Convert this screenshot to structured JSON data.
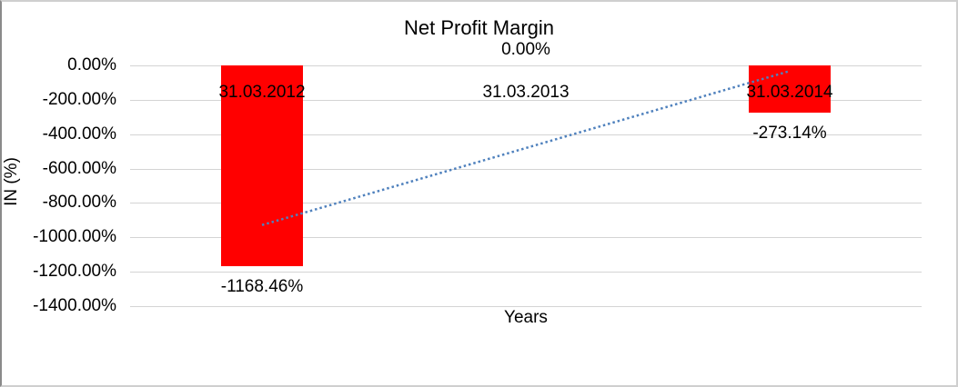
{
  "chart_data": {
    "type": "bar",
    "title": "Net Profit Margin",
    "xlabel": "Years",
    "ylabel": "IN (%)",
    "categories": [
      "31.03.2012",
      "31.03.2013",
      "31.03.2014"
    ],
    "values": [
      -1168.46,
      0,
      -273.14
    ],
    "data_labels": [
      "-1168.46%",
      "0.00%",
      "-273.14%"
    ],
    "ylim": [
      -1400,
      0
    ],
    "ytick_step": 200,
    "ytick_labels": [
      "0.00%",
      "-200.00%",
      "-400.00%",
      "-600.00%",
      "-800.00%",
      "-1000.00%",
      "-1200.00%",
      "-1400.00%"
    ],
    "grid": true,
    "legend": "none",
    "bar_color": "#ff0000",
    "gridline_color": "#d4d4d4",
    "trendline": {
      "type": "linear",
      "style": "dotted",
      "color": "#4f81bd",
      "start_value_pct": -928.19,
      "end_value_pct": -32.87
    }
  }
}
